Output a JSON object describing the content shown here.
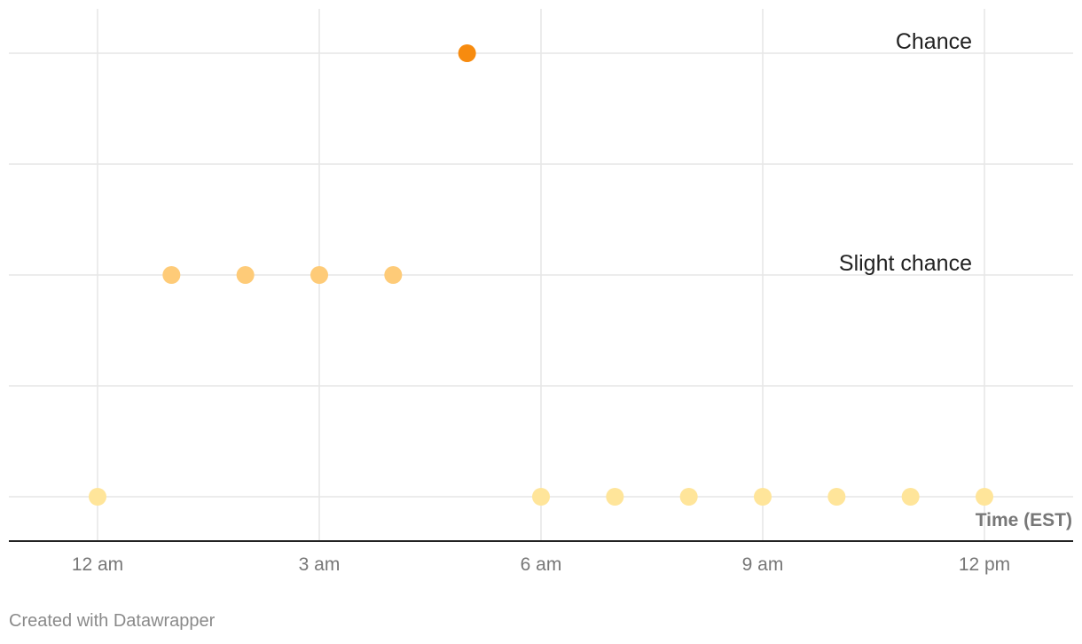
{
  "chart_data": {
    "type": "scatter",
    "x_axis": {
      "title": "Time (EST)",
      "ticks": [
        "12 am",
        "3 am",
        "6 am",
        "9 am",
        "12 pm"
      ],
      "tick_hours": [
        0,
        3,
        6,
        9,
        12
      ],
      "range_hours": [
        -1.2,
        13.2
      ]
    },
    "y_levels": [
      1,
      2,
      3,
      4,
      5
    ],
    "y_range": [
      0.6,
      5.4
    ],
    "annotations": [
      {
        "text": "Chance",
        "y": 5
      },
      {
        "text": "Slight chance",
        "y": 3
      }
    ],
    "points": [
      {
        "hour": 0,
        "y": 1,
        "color": "#ffe59a"
      },
      {
        "hour": 1,
        "y": 3,
        "color": "#fecb78"
      },
      {
        "hour": 2,
        "y": 3,
        "color": "#fecb78"
      },
      {
        "hour": 3,
        "y": 3,
        "color": "#fecb78"
      },
      {
        "hour": 4,
        "y": 3,
        "color": "#fecb78"
      },
      {
        "hour": 5,
        "y": 5,
        "color": "#f78b0f"
      },
      {
        "hour": 6,
        "y": 1,
        "color": "#ffe59a"
      },
      {
        "hour": 7,
        "y": 1,
        "color": "#ffe59a"
      },
      {
        "hour": 8,
        "y": 1,
        "color": "#ffe59a"
      },
      {
        "hour": 9,
        "y": 1,
        "color": "#ffe59a"
      },
      {
        "hour": 10,
        "y": 1,
        "color": "#ffe59a"
      },
      {
        "hour": 11,
        "y": 1,
        "color": "#ffe59a"
      },
      {
        "hour": 12,
        "y": 1,
        "color": "#ffe59a"
      }
    ],
    "grid": true,
    "colors": {
      "grid": "#e6e6e6",
      "baseline": "#222222"
    }
  },
  "footer": {
    "credit": "Created with Datawrapper"
  }
}
